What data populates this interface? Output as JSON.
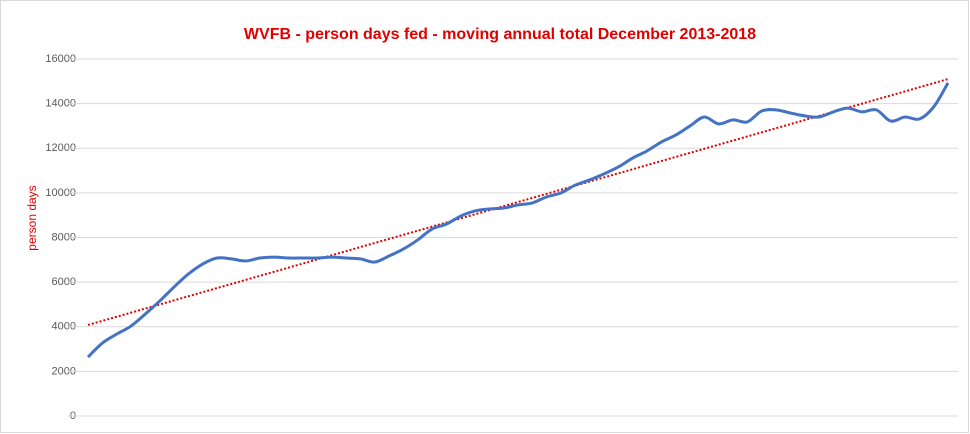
{
  "chart_data": {
    "type": "line",
    "title": "WVFB - person days fed - moving annual total December 2013-2018",
    "y_label": "person days",
    "ylim": [
      0,
      16000
    ],
    "yticks": [
      0,
      2000,
      4000,
      6000,
      8000,
      10000,
      12000,
      14000,
      16000
    ],
    "grid": true,
    "color": "#4472c4",
    "values": [
      2640,
      3270,
      3670,
      4030,
      4570,
      5150,
      5780,
      6360,
      6810,
      7080,
      7040,
      6950,
      7080,
      7120,
      7080,
      7080,
      7080,
      7120,
      7080,
      7040,
      6900,
      7170,
      7480,
      7890,
      8380,
      8600,
      8960,
      9190,
      9280,
      9320,
      9460,
      9550,
      9820,
      10000,
      10350,
      10580,
      10850,
      11160,
      11560,
      11880,
      12280,
      12590,
      13000,
      13400,
      13090,
      13270,
      13180,
      13670,
      13720,
      13580,
      13450,
      13400,
      13630,
      13800,
      13630,
      13720,
      13220,
      13400,
      13310,
      13850,
      14930
    ],
    "trendline": {
      "color": "#e00000",
      "values": [
        4080,
        15100
      ]
    }
  }
}
